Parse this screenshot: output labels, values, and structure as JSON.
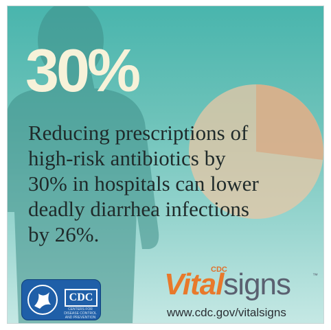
{
  "headline": {
    "percent": "30%"
  },
  "message": {
    "lines": [
      "Reducing prescriptions of",
      "high-risk antibiotics by",
      "30% in hospitals can lower",
      "deadly diarrhea infections",
      "by 26%."
    ]
  },
  "logo": {
    "cdc_text": "CDC",
    "cdc_subtext": "CENTERS FOR DISEASE CONTROL AND PREVENTION",
    "vital_cdc": "CDC",
    "vital_part1": "Vital",
    "vital_part2": "signs",
    "vital_tm": "™"
  },
  "footer": {
    "url": "www.cdc.gov/vitalsigns"
  },
  "colors": {
    "background_top": "#49b5ad",
    "background_bottom": "#c5e8e4",
    "headline": "#f7f2d9",
    "pie_main": "#e8c7a6",
    "pie_slice": "#d6ad88",
    "cdc_blue": "#1f5fa8",
    "vital_orange": "#e8792b",
    "signs_gray": "#5a6070"
  },
  "icons": {
    "silhouette": "person-silhouette-icon",
    "pie": "pie-chart-icon",
    "hhs": "hhs-eagle-icon"
  }
}
